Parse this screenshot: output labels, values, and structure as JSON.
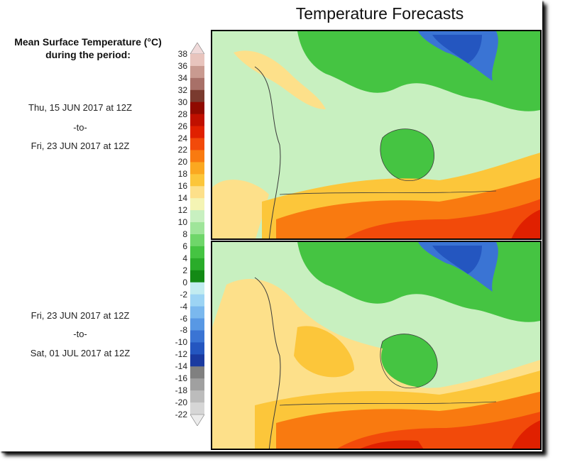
{
  "title": "Temperature Forecasts",
  "legend": {
    "title_line1": "Mean Surface Temperature (°C)",
    "title_line2": "during the period:",
    "ticks": [
      "38",
      "36",
      "34",
      "32",
      "30",
      "28",
      "26",
      "24",
      "22",
      "20",
      "18",
      "16",
      "14",
      "12",
      "10",
      "8",
      "6",
      "4",
      "2",
      "0",
      "-2",
      "-4",
      "-6",
      "-8",
      "-10",
      "-12",
      "-14",
      "-16",
      "-18",
      "-20",
      "-22"
    ],
    "colors": [
      "#e8c4bd",
      "#c99a90",
      "#a87068",
      "#7a3a2e",
      "#900a00",
      "#c01000",
      "#e02000",
      "#f24a0a",
      "#f97a10",
      "#fba820",
      "#fcc63a",
      "#fde08a",
      "#f4f4b4",
      "#c8f0c0",
      "#9fe59a",
      "#6fd66a",
      "#45c442",
      "#2aac2a",
      "#138a15",
      "#c2ecf0",
      "#9cd4f4",
      "#7ab8ee",
      "#5898e4",
      "#3a74d4",
      "#2456c0",
      "#1a3aa0",
      "#808080",
      "#a0a0a0",
      "#bcbcbc",
      "#d6d6d6"
    ]
  },
  "period1": {
    "start": "Thu, 15 JUN 2017 at 12Z",
    "sep": "-to-",
    "end": "Fri, 23 JUN 2017 at 12Z"
  },
  "period2": {
    "start": "Fri, 23 JUN 2017 at 12Z",
    "sep": "-to-",
    "end": "Sat, 01 JUL 2017 at 12Z"
  }
}
